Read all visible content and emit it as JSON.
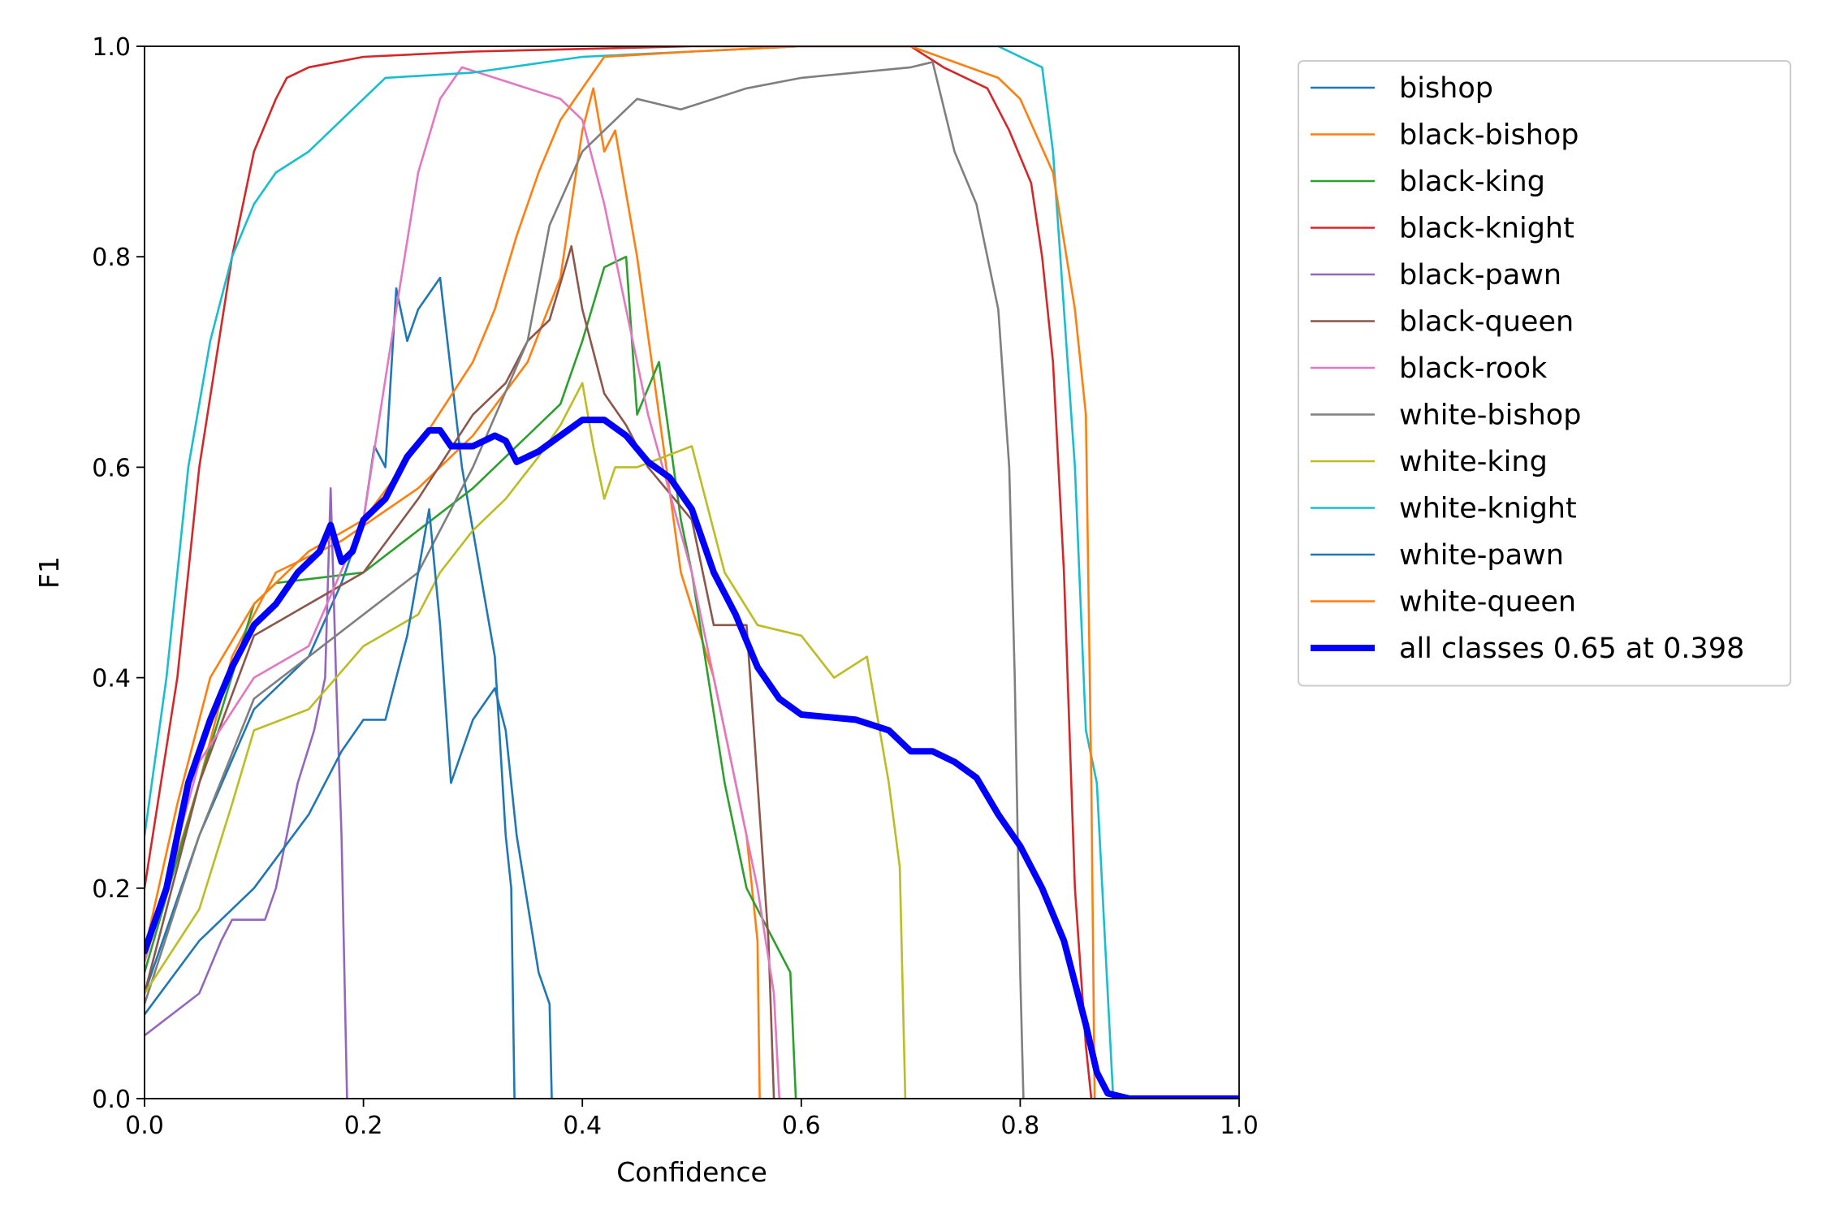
{
  "chart_data": {
    "type": "line",
    "xlabel": "Confidence",
    "ylabel": "F1",
    "xlim": [
      0,
      1
    ],
    "ylim": [
      0,
      1
    ],
    "x_ticks": [
      "0.0",
      "0.2",
      "0.4",
      "0.6",
      "0.8",
      "1.0"
    ],
    "y_ticks": [
      "0.0",
      "0.2",
      "0.4",
      "0.6",
      "0.8",
      "1.0"
    ],
    "grid": false,
    "legend_position": "outside-right",
    "series": [
      {
        "name": "bishop",
        "color": "#1f77b4",
        "points": [
          [
            0,
            0.1
          ],
          [
            0.05,
            0.25
          ],
          [
            0.1,
            0.37
          ],
          [
            0.15,
            0.42
          ],
          [
            0.18,
            0.49
          ],
          [
            0.2,
            0.55
          ],
          [
            0.21,
            0.62
          ],
          [
            0.22,
            0.6
          ],
          [
            0.23,
            0.77
          ],
          [
            0.24,
            0.72
          ],
          [
            0.25,
            0.75
          ],
          [
            0.27,
            0.78
          ],
          [
            0.29,
            0.6
          ],
          [
            0.31,
            0.48
          ],
          [
            0.32,
            0.42
          ],
          [
            0.33,
            0.25
          ],
          [
            0.335,
            0.2
          ],
          [
            0.338,
            0
          ]
        ]
      },
      {
        "name": "black-bishop",
        "color": "#ff7f0e",
        "points": [
          [
            0,
            0.13
          ],
          [
            0.05,
            0.3
          ],
          [
            0.08,
            0.42
          ],
          [
            0.12,
            0.5
          ],
          [
            0.18,
            0.53
          ],
          [
            0.25,
            0.58
          ],
          [
            0.3,
            0.63
          ],
          [
            0.35,
            0.7
          ],
          [
            0.38,
            0.78
          ],
          [
            0.4,
            0.92
          ],
          [
            0.41,
            0.96
          ],
          [
            0.42,
            0.9
          ],
          [
            0.43,
            0.92
          ],
          [
            0.45,
            0.8
          ],
          [
            0.47,
            0.65
          ],
          [
            0.49,
            0.5
          ],
          [
            0.52,
            0.4
          ],
          [
            0.55,
            0.25
          ],
          [
            0.56,
            0.15
          ],
          [
            0.562,
            0
          ]
        ]
      },
      {
        "name": "black-king",
        "color": "#2ca02c",
        "points": [
          [
            0,
            0.12
          ],
          [
            0.05,
            0.3
          ],
          [
            0.1,
            0.47
          ],
          [
            0.12,
            0.49
          ],
          [
            0.2,
            0.5
          ],
          [
            0.25,
            0.54
          ],
          [
            0.3,
            0.58
          ],
          [
            0.35,
            0.63
          ],
          [
            0.38,
            0.66
          ],
          [
            0.4,
            0.72
          ],
          [
            0.42,
            0.79
          ],
          [
            0.44,
            0.8
          ],
          [
            0.45,
            0.65
          ],
          [
            0.47,
            0.7
          ],
          [
            0.49,
            0.55
          ],
          [
            0.5,
            0.5
          ],
          [
            0.53,
            0.3
          ],
          [
            0.55,
            0.2
          ],
          [
            0.59,
            0.12
          ],
          [
            0.595,
            0
          ]
        ]
      },
      {
        "name": "black-knight",
        "color": "#d62728",
        "points": [
          [
            0,
            0.2
          ],
          [
            0.03,
            0.4
          ],
          [
            0.05,
            0.6
          ],
          [
            0.08,
            0.8
          ],
          [
            0.1,
            0.9
          ],
          [
            0.12,
            0.95
          ],
          [
            0.13,
            0.97
          ],
          [
            0.15,
            0.98
          ],
          [
            0.2,
            0.99
          ],
          [
            0.3,
            0.995
          ],
          [
            0.5,
            1
          ],
          [
            0.7,
            1
          ],
          [
            0.73,
            0.98
          ],
          [
            0.77,
            0.96
          ],
          [
            0.79,
            0.92
          ],
          [
            0.81,
            0.87
          ],
          [
            0.82,
            0.8
          ],
          [
            0.83,
            0.7
          ],
          [
            0.84,
            0.5
          ],
          [
            0.85,
            0.2
          ],
          [
            0.86,
            0.05
          ],
          [
            0.865,
            0
          ]
        ]
      },
      {
        "name": "black-pawn",
        "color": "#9467bd",
        "points": [
          [
            0,
            0.06
          ],
          [
            0.05,
            0.1
          ],
          [
            0.07,
            0.15
          ],
          [
            0.08,
            0.17
          ],
          [
            0.11,
            0.17
          ],
          [
            0.12,
            0.2
          ],
          [
            0.13,
            0.25
          ],
          [
            0.14,
            0.3
          ],
          [
            0.155,
            0.35
          ],
          [
            0.165,
            0.4
          ],
          [
            0.17,
            0.58
          ],
          [
            0.175,
            0.4
          ],
          [
            0.18,
            0.25
          ],
          [
            0.185,
            0
          ]
        ]
      },
      {
        "name": "black-queen",
        "color": "#8c564b",
        "points": [
          [
            0,
            0.1
          ],
          [
            0.05,
            0.3
          ],
          [
            0.1,
            0.44
          ],
          [
            0.15,
            0.47
          ],
          [
            0.2,
            0.5
          ],
          [
            0.25,
            0.57
          ],
          [
            0.3,
            0.65
          ],
          [
            0.33,
            0.68
          ],
          [
            0.35,
            0.72
          ],
          [
            0.37,
            0.74
          ],
          [
            0.39,
            0.81
          ],
          [
            0.4,
            0.75
          ],
          [
            0.42,
            0.67
          ],
          [
            0.44,
            0.64
          ],
          [
            0.46,
            0.6
          ],
          [
            0.5,
            0.55
          ],
          [
            0.52,
            0.45
          ],
          [
            0.55,
            0.45
          ],
          [
            0.56,
            0.3
          ],
          [
            0.57,
            0.15
          ],
          [
            0.575,
            0
          ]
        ]
      },
      {
        "name": "black-rook",
        "color": "#e377c2",
        "points": [
          [
            0,
            0.13
          ],
          [
            0.05,
            0.32
          ],
          [
            0.1,
            0.4
          ],
          [
            0.15,
            0.43
          ],
          [
            0.2,
            0.55
          ],
          [
            0.23,
            0.75
          ],
          [
            0.25,
            0.88
          ],
          [
            0.27,
            0.95
          ],
          [
            0.29,
            0.98
          ],
          [
            0.32,
            0.97
          ],
          [
            0.38,
            0.95
          ],
          [
            0.4,
            0.93
          ],
          [
            0.42,
            0.85
          ],
          [
            0.43,
            0.8
          ],
          [
            0.44,
            0.75
          ],
          [
            0.46,
            0.65
          ],
          [
            0.5,
            0.5
          ],
          [
            0.53,
            0.35
          ],
          [
            0.56,
            0.2
          ],
          [
            0.575,
            0.1
          ],
          [
            0.58,
            0
          ]
        ]
      },
      {
        "name": "white-bishop",
        "color": "#7f7f7f",
        "points": [
          [
            0,
            0.09
          ],
          [
            0.05,
            0.25
          ],
          [
            0.1,
            0.38
          ],
          [
            0.15,
            0.42
          ],
          [
            0.2,
            0.46
          ],
          [
            0.25,
            0.5
          ],
          [
            0.3,
            0.6
          ],
          [
            0.35,
            0.72
          ],
          [
            0.37,
            0.83
          ],
          [
            0.4,
            0.9
          ],
          [
            0.43,
            0.93
          ],
          [
            0.45,
            0.95
          ],
          [
            0.49,
            0.94
          ],
          [
            0.55,
            0.96
          ],
          [
            0.6,
            0.97
          ],
          [
            0.7,
            0.98
          ],
          [
            0.72,
            0.985
          ],
          [
            0.74,
            0.9
          ],
          [
            0.76,
            0.85
          ],
          [
            0.78,
            0.75
          ],
          [
            0.79,
            0.6
          ],
          [
            0.795,
            0.4
          ],
          [
            0.8,
            0.12
          ],
          [
            0.803,
            0
          ]
        ]
      },
      {
        "name": "white-king",
        "color": "#bcbd22",
        "points": [
          [
            0,
            0.1
          ],
          [
            0.05,
            0.18
          ],
          [
            0.08,
            0.28
          ],
          [
            0.1,
            0.35
          ],
          [
            0.15,
            0.37
          ],
          [
            0.2,
            0.43
          ],
          [
            0.25,
            0.46
          ],
          [
            0.27,
            0.5
          ],
          [
            0.3,
            0.54
          ],
          [
            0.33,
            0.57
          ],
          [
            0.36,
            0.61
          ],
          [
            0.38,
            0.64
          ],
          [
            0.4,
            0.68
          ],
          [
            0.41,
            0.62
          ],
          [
            0.42,
            0.57
          ],
          [
            0.43,
            0.6
          ],
          [
            0.45,
            0.6
          ],
          [
            0.5,
            0.62
          ],
          [
            0.53,
            0.5
          ],
          [
            0.56,
            0.45
          ],
          [
            0.6,
            0.44
          ],
          [
            0.63,
            0.4
          ],
          [
            0.66,
            0.42
          ],
          [
            0.68,
            0.3
          ],
          [
            0.69,
            0.22
          ],
          [
            0.695,
            0
          ]
        ]
      },
      {
        "name": "white-knight",
        "color": "#17becf",
        "points": [
          [
            0,
            0.25
          ],
          [
            0.02,
            0.4
          ],
          [
            0.04,
            0.6
          ],
          [
            0.06,
            0.72
          ],
          [
            0.08,
            0.8
          ],
          [
            0.1,
            0.85
          ],
          [
            0.12,
            0.88
          ],
          [
            0.15,
            0.9
          ],
          [
            0.18,
            0.93
          ],
          [
            0.2,
            0.95
          ],
          [
            0.22,
            0.97
          ],
          [
            0.3,
            0.975
          ],
          [
            0.4,
            0.99
          ],
          [
            0.5,
            0.995
          ],
          [
            0.6,
            1
          ],
          [
            0.78,
            1
          ],
          [
            0.82,
            0.98
          ],
          [
            0.83,
            0.9
          ],
          [
            0.84,
            0.75
          ],
          [
            0.85,
            0.6
          ],
          [
            0.86,
            0.35
          ],
          [
            0.87,
            0.3
          ],
          [
            0.88,
            0.1
          ],
          [
            0.885,
            0
          ]
        ]
      },
      {
        "name": "white-pawn",
        "color": "#1f77b4",
        "points": [
          [
            0,
            0.08
          ],
          [
            0.05,
            0.15
          ],
          [
            0.1,
            0.2
          ],
          [
            0.15,
            0.27
          ],
          [
            0.18,
            0.33
          ],
          [
            0.2,
            0.36
          ],
          [
            0.22,
            0.36
          ],
          [
            0.23,
            0.4
          ],
          [
            0.24,
            0.44
          ],
          [
            0.25,
            0.5
          ],
          [
            0.26,
            0.56
          ],
          [
            0.27,
            0.45
          ],
          [
            0.28,
            0.3
          ],
          [
            0.3,
            0.36
          ],
          [
            0.32,
            0.39
          ],
          [
            0.33,
            0.35
          ],
          [
            0.34,
            0.25
          ],
          [
            0.36,
            0.12
          ],
          [
            0.37,
            0.09
          ],
          [
            0.372,
            0
          ]
        ]
      },
      {
        "name": "white-queen",
        "color": "#ff7f0e",
        "points": [
          [
            0,
            0.14
          ],
          [
            0.03,
            0.28
          ],
          [
            0.06,
            0.4
          ],
          [
            0.1,
            0.47
          ],
          [
            0.15,
            0.52
          ],
          [
            0.2,
            0.55
          ],
          [
            0.25,
            0.62
          ],
          [
            0.3,
            0.7
          ],
          [
            0.32,
            0.75
          ],
          [
            0.34,
            0.82
          ],
          [
            0.36,
            0.88
          ],
          [
            0.38,
            0.93
          ],
          [
            0.4,
            0.96
          ],
          [
            0.42,
            0.99
          ],
          [
            0.5,
            0.995
          ],
          [
            0.6,
            1
          ],
          [
            0.7,
            1
          ],
          [
            0.78,
            0.97
          ],
          [
            0.8,
            0.95
          ],
          [
            0.83,
            0.88
          ],
          [
            0.85,
            0.75
          ],
          [
            0.86,
            0.65
          ],
          [
            0.865,
            0.3
          ],
          [
            0.868,
            0
          ]
        ]
      },
      {
        "name": "all classes 0.65 at 0.398",
        "color": "#0000ff",
        "bold": true,
        "points": [
          [
            0,
            0.14
          ],
          [
            0.02,
            0.2
          ],
          [
            0.04,
            0.3
          ],
          [
            0.06,
            0.36
          ],
          [
            0.08,
            0.41
          ],
          [
            0.1,
            0.45
          ],
          [
            0.12,
            0.47
          ],
          [
            0.14,
            0.5
          ],
          [
            0.16,
            0.52
          ],
          [
            0.17,
            0.545
          ],
          [
            0.18,
            0.51
          ],
          [
            0.19,
            0.52
          ],
          [
            0.2,
            0.55
          ],
          [
            0.22,
            0.57
          ],
          [
            0.24,
            0.61
          ],
          [
            0.26,
            0.635
          ],
          [
            0.27,
            0.635
          ],
          [
            0.28,
            0.62
          ],
          [
            0.3,
            0.62
          ],
          [
            0.32,
            0.63
          ],
          [
            0.33,
            0.625
          ],
          [
            0.34,
            0.605
          ],
          [
            0.36,
            0.615
          ],
          [
            0.38,
            0.63
          ],
          [
            0.4,
            0.645
          ],
          [
            0.42,
            0.645
          ],
          [
            0.44,
            0.63
          ],
          [
            0.46,
            0.605
          ],
          [
            0.48,
            0.59
          ],
          [
            0.5,
            0.56
          ],
          [
            0.52,
            0.5
          ],
          [
            0.54,
            0.46
          ],
          [
            0.56,
            0.41
          ],
          [
            0.58,
            0.38
          ],
          [
            0.6,
            0.365
          ],
          [
            0.65,
            0.36
          ],
          [
            0.68,
            0.35
          ],
          [
            0.7,
            0.33
          ],
          [
            0.72,
            0.33
          ],
          [
            0.74,
            0.32
          ],
          [
            0.76,
            0.305
          ],
          [
            0.78,
            0.27
          ],
          [
            0.8,
            0.24
          ],
          [
            0.82,
            0.2
          ],
          [
            0.84,
            0.15
          ],
          [
            0.86,
            0.07
          ],
          [
            0.87,
            0.025
          ],
          [
            0.88,
            0.005
          ],
          [
            0.9,
            0
          ],
          [
            1.0,
            0
          ]
        ]
      }
    ]
  }
}
